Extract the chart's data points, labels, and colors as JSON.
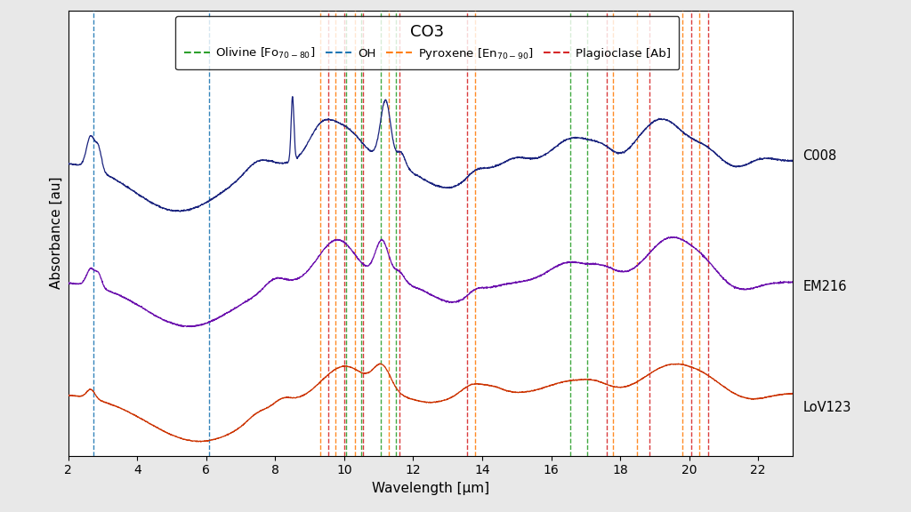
{
  "title": "CO3",
  "xlabel": "Wavelength [μm]",
  "ylabel": "Absorbance [au]",
  "xlim": [
    2,
    23
  ],
  "spectra_labels": [
    "C008",
    "EM216",
    "LoV123"
  ],
  "spectra_colors": [
    "#1a237e",
    "#6a0dad",
    "#cc3300"
  ],
  "spectra_offsets": [
    2.0,
    1.0,
    0.0
  ],
  "oh_lines": [
    2.72,
    6.08
  ],
  "olivine_lines": [
    10.05,
    10.5,
    11.05,
    11.5,
    16.55,
    17.05
  ],
  "pyroxene_lines": [
    9.3,
    9.75,
    10.3,
    11.3,
    13.8,
    17.8,
    18.5,
    19.8,
    20.3
  ],
  "plagioclase_lines": [
    9.55,
    10.0,
    10.55,
    11.6,
    13.55,
    17.6,
    18.85,
    20.05,
    20.55
  ],
  "olivine_color": "#2ca02c",
  "oh_color": "#1f77b4",
  "pyroxene_color": "#ff7f0e",
  "plagioclase_color": "#d62728",
  "legend_fontsize": 9.5,
  "title_fontsize": 13,
  "label_fontsize": 11,
  "tick_fontsize": 10,
  "fig_bg_color": "#e8e8e8",
  "plot_bg_color": "#ffffff"
}
